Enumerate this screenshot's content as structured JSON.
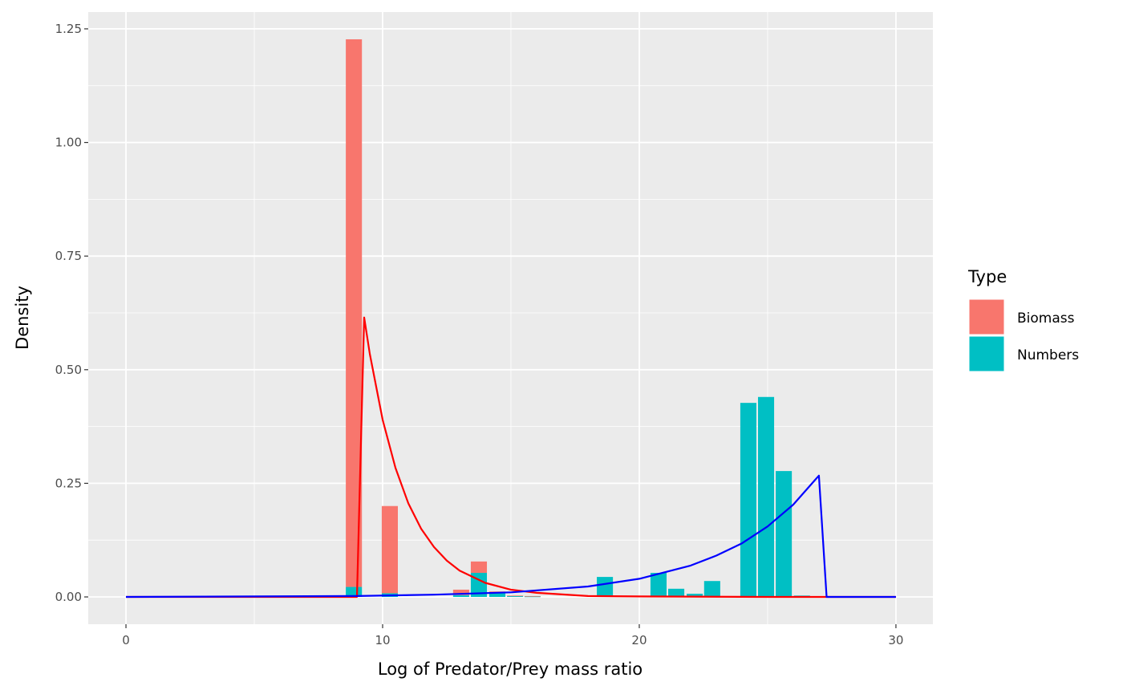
{
  "chart_data": {
    "type": "bar",
    "title": "",
    "xlabel": "Log of Predator/Prey mass ratio",
    "ylabel": "Density",
    "xlim": [
      -1.47,
      31.44
    ],
    "ylim": [
      -0.06,
      1.287
    ],
    "x_ticks": [
      0,
      10,
      20,
      30
    ],
    "x_tick_labels": [
      "0",
      "10",
      "20",
      "30"
    ],
    "y_ticks": [
      0,
      0.25,
      0.5,
      0.75,
      1.0,
      1.25
    ],
    "y_tick_labels": [
      "0.00",
      "0.25",
      "0.50",
      "0.75",
      "1.00",
      "1.25"
    ],
    "grid": true,
    "stacked": true,
    "bin_width": 0.69,
    "legend": {
      "title": "Type",
      "placement": "right",
      "entries": [
        "Biomass",
        "Numbers"
      ]
    },
    "colors": {
      "Biomass": "#F8766D",
      "Numbers": "#00BFC4",
      "biomass_curve": "#FF0000",
      "numbers_curve": "#0000FF",
      "panel": "#EBEBEB"
    },
    "x": [
      8.88,
      10.28,
      13.06,
      13.75,
      14.47,
      15.16,
      15.84,
      18.66,
      20.06,
      20.75,
      21.44,
      22.16,
      22.84,
      24.25,
      24.94,
      25.63,
      26.34
    ],
    "series": [
      {
        "name": "Numbers",
        "values": [
          0.022,
          0.008,
          0.004,
          0.053,
          0.01,
          0.002,
          0.001,
          0.044,
          0.002,
          0.053,
          0.018,
          0.007,
          0.035,
          0.427,
          0.44,
          0.277,
          0.003
        ]
      },
      {
        "name": "Biomass",
        "values": [
          1.205,
          0.192,
          0.012,
          0.025,
          0.002,
          0.001,
          0.001,
          0,
          0,
          0,
          0,
          0,
          0,
          0,
          0,
          0,
          0
        ]
      }
    ],
    "lines": [
      {
        "series": "Biomass",
        "color": "#FF0000",
        "x": [
          0,
          9.0,
          9.28,
          9.5,
          10,
          10.5,
          11,
          11.5,
          12,
          12.5,
          13,
          14,
          15,
          16,
          18,
          20,
          25,
          30
        ],
        "y": [
          0,
          0,
          0.615,
          0.535,
          0.39,
          0.284,
          0.206,
          0.15,
          0.11,
          0.08,
          0.058,
          0.031,
          0.016,
          0.009,
          0.002,
          0.001,
          0,
          0
        ]
      },
      {
        "series": "Numbers",
        "color": "#0000FF",
        "x": [
          0,
          5,
          9,
          12,
          15,
          18,
          20,
          22,
          23,
          24,
          25,
          26,
          27,
          27.3,
          30
        ],
        "y": [
          0,
          0.001,
          0.002,
          0.005,
          0.01,
          0.023,
          0.04,
          0.069,
          0.091,
          0.118,
          0.155,
          0.203,
          0.267,
          0,
          0
        ]
      }
    ]
  }
}
